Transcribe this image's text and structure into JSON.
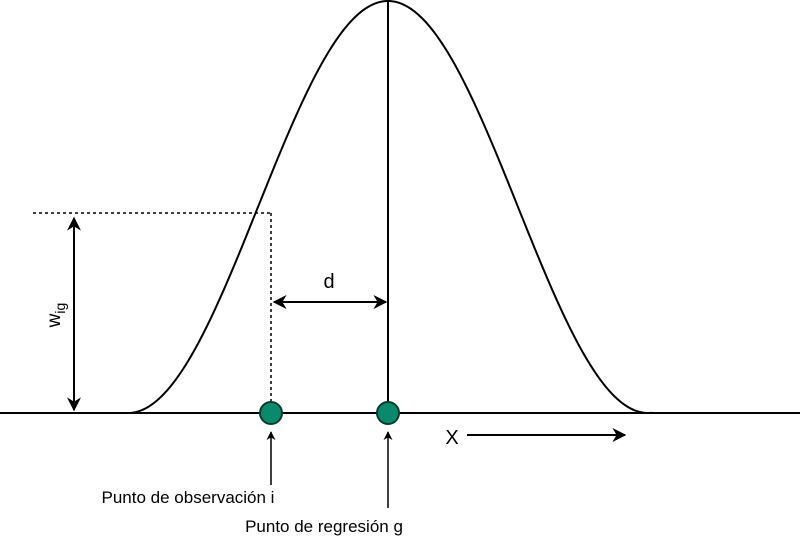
{
  "labels": {
    "weight_main": "w",
    "weight_sub": "ig",
    "distance": "d",
    "axis": "X",
    "observation_point": "Punto de observación i",
    "regression_point": "Punto de regresión g"
  },
  "colors": {
    "line": "#000000",
    "point_fill": "#0a8a6a",
    "point_stroke": "#0b3d2f"
  }
}
